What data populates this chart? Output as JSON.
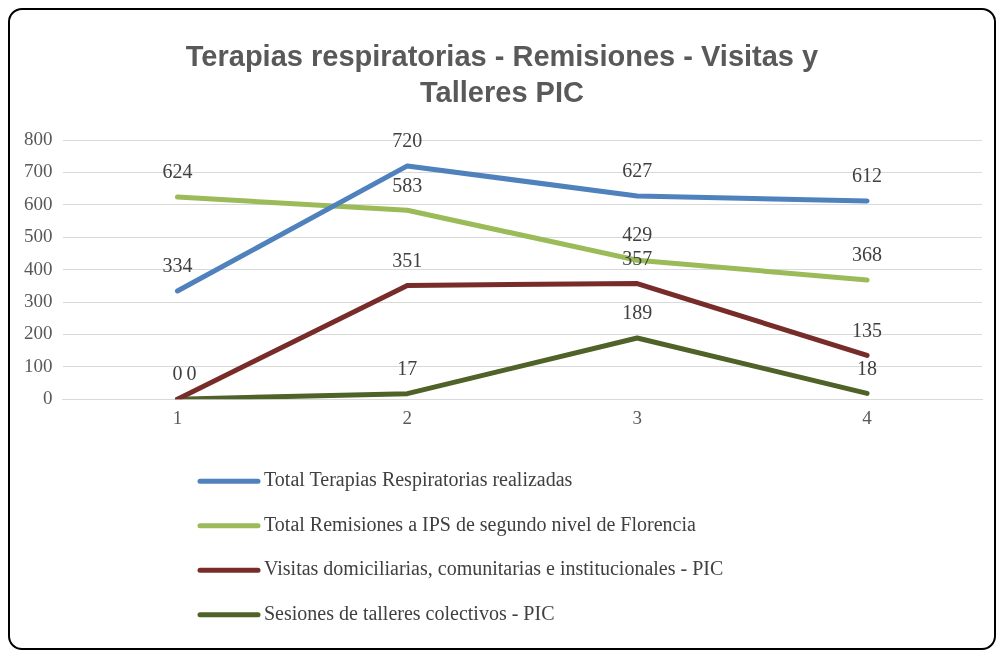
{
  "chart_data": {
    "type": "line",
    "title": "Terapias respiratorias - Remisiones - Visitas y Talleres PIC",
    "categories": [
      "1",
      "2",
      "3",
      "4"
    ],
    "series": [
      {
        "name": "Total Terapias Respiratorias realizadas",
        "color": "#4f81bd",
        "values": [
          334,
          720,
          627,
          612
        ]
      },
      {
        "name": "Total Remisiones a IPS de segundo nivel de Florencia",
        "color": "#9bbb59",
        "values": [
          624,
          583,
          429,
          368
        ]
      },
      {
        "name": "Visitas domiciliarias, comunitarias e institucionales - PIC",
        "color": "#772c2a",
        "values": [
          0,
          351,
          357,
          135
        ]
      },
      {
        "name": "Sesiones de talleres colectivos - PIC",
        "color": "#4f6228",
        "values": [
          0,
          17,
          189,
          18
        ]
      }
    ],
    "ylim": [
      0,
      800
    ],
    "yticks": [
      0,
      100,
      200,
      300,
      400,
      500,
      600,
      700,
      800
    ],
    "grid": "y",
    "legend": "bottom",
    "data_labels": true,
    "marker": "none",
    "line_style": "solid"
  }
}
